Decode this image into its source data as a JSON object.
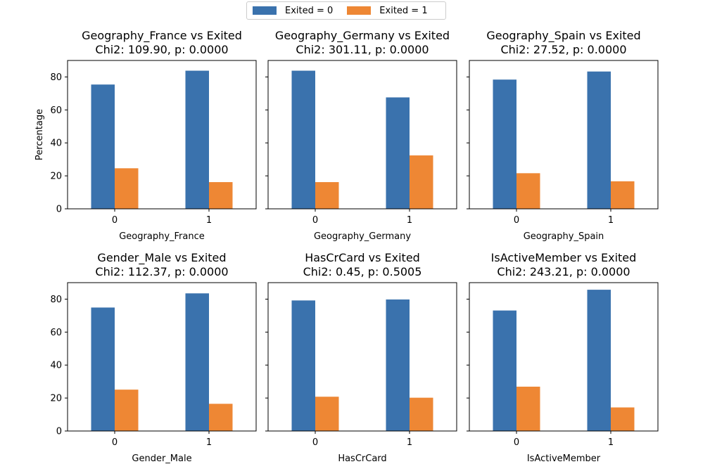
{
  "colors": {
    "exited0": "#3a72ad",
    "exited1": "#ee8734"
  },
  "legend": {
    "items": [
      "Exited = 0",
      "Exited = 1"
    ],
    "placement": "top-center"
  },
  "chart_data": [
    {
      "type": "bar",
      "title": "Geography_France vs Exited",
      "subtitle": "Chi2: 109.90, p: 0.0000",
      "xlabel": "Geography_France",
      "ylabel": "Percentage",
      "categories": [
        "0",
        "1"
      ],
      "ylim": [
        0,
        90
      ],
      "yticks": [
        0,
        20,
        40,
        60,
        80
      ],
      "series": [
        {
          "name": "Exited = 0",
          "values": [
            75.4,
            83.8
          ]
        },
        {
          "name": "Exited = 1",
          "values": [
            24.6,
            16.2
          ]
        }
      ]
    },
    {
      "type": "bar",
      "title": "Geography_Germany vs Exited",
      "subtitle": "Chi2: 301.11, p: 0.0000",
      "xlabel": "Geography_Germany",
      "ylabel": "",
      "categories": [
        "0",
        "1"
      ],
      "ylim": [
        0,
        90
      ],
      "yticks": [
        0,
        20,
        40,
        60,
        80
      ],
      "series": [
        {
          "name": "Exited = 0",
          "values": [
            83.8,
            67.6
          ]
        },
        {
          "name": "Exited = 1",
          "values": [
            16.2,
            32.4
          ]
        }
      ]
    },
    {
      "type": "bar",
      "title": "Geography_Spain vs Exited",
      "subtitle": "Chi2: 27.52, p: 0.0000",
      "xlabel": "Geography_Spain",
      "ylabel": "",
      "categories": [
        "0",
        "1"
      ],
      "ylim": [
        0,
        90
      ],
      "yticks": [
        0,
        20,
        40,
        60,
        80
      ],
      "series": [
        {
          "name": "Exited = 0",
          "values": [
            78.4,
            83.3
          ]
        },
        {
          "name": "Exited = 1",
          "values": [
            21.6,
            16.7
          ]
        }
      ]
    },
    {
      "type": "bar",
      "title": "Gender_Male vs Exited",
      "subtitle": "Chi2: 112.37, p: 0.0000",
      "xlabel": "Gender_Male",
      "ylabel": "",
      "categories": [
        "0",
        "1"
      ],
      "ylim": [
        0,
        90
      ],
      "yticks": [
        0,
        20,
        40,
        60,
        80
      ],
      "series": [
        {
          "name": "Exited = 0",
          "values": [
            74.9,
            83.5
          ]
        },
        {
          "name": "Exited = 1",
          "values": [
            25.1,
            16.5
          ]
        }
      ]
    },
    {
      "type": "bar",
      "title": "HasCrCard vs Exited",
      "subtitle": "Chi2: 0.45, p: 0.5005",
      "xlabel": "HasCrCard",
      "ylabel": "",
      "categories": [
        "0",
        "1"
      ],
      "ylim": [
        0,
        90
      ],
      "yticks": [
        0,
        20,
        40,
        60,
        80
      ],
      "series": [
        {
          "name": "Exited = 0",
          "values": [
            79.2,
            79.8
          ]
        },
        {
          "name": "Exited = 1",
          "values": [
            20.8,
            20.2
          ]
        }
      ]
    },
    {
      "type": "bar",
      "title": "IsActiveMember vs Exited",
      "subtitle": "Chi2: 243.21, p: 0.0000",
      "xlabel": "IsActiveMember",
      "ylabel": "",
      "categories": [
        "0",
        "1"
      ],
      "ylim": [
        0,
        90
      ],
      "yticks": [
        0,
        20,
        40,
        60,
        80
      ],
      "series": [
        {
          "name": "Exited = 0",
          "values": [
            73.1,
            85.7
          ]
        },
        {
          "name": "Exited = 1",
          "values": [
            26.9,
            14.3
          ]
        }
      ]
    }
  ]
}
